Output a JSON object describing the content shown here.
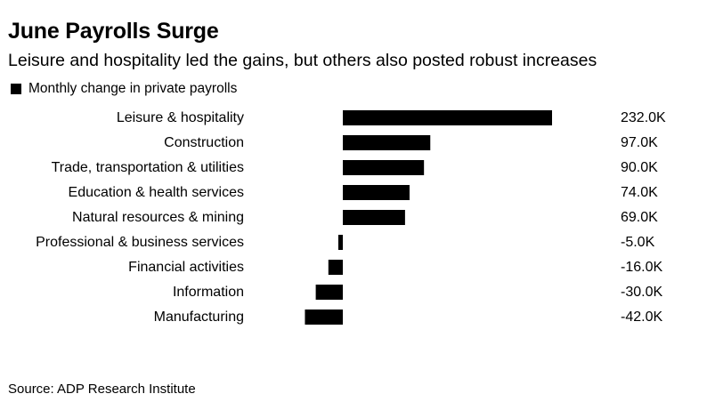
{
  "header": {
    "title": "June Payrolls Surge",
    "subtitle": "Leisure and hospitality led the gains, but others also posted robust increases"
  },
  "legend": {
    "label": "Monthly change in private payrolls",
    "color": "#000000"
  },
  "chart_data": {
    "type": "bar",
    "orientation": "horizontal",
    "title": "June Payrolls Surge",
    "subtitle": "Leisure and hospitality led the gains, but others also posted robust increases",
    "categories": [
      "Leisure & hospitality",
      "Construction",
      "Trade, transportation & utilities",
      "Education & health services",
      "Natural resources & mining",
      "Professional & business services",
      "Financial activities",
      "Information",
      "Manufacturing"
    ],
    "series": [
      {
        "name": "Monthly change in private payrolls",
        "color": "#000000",
        "values": [
          232.0,
          97.0,
          90.0,
          74.0,
          69.0,
          -5.0,
          -16.0,
          -30.0,
          -42.0
        ],
        "labels": [
          "232.0K",
          "97.0K",
          "90.0K",
          "74.0K",
          "69.0K",
          "-5.0K",
          "-16.0K",
          "-30.0K",
          "-42.0K"
        ]
      }
    ],
    "unit": "K",
    "xlim": [
      -42,
      232
    ],
    "grid": false,
    "legend_position": "top-left"
  },
  "footer": {
    "source": "Source: ADP Research Institute"
  }
}
